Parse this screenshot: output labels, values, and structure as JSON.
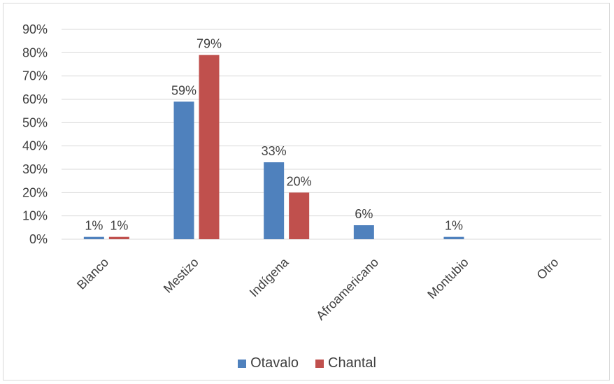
{
  "chart_data": {
    "type": "bar",
    "categories": [
      "Blanco",
      "Mestizo",
      "Indígena",
      "Afroamericano",
      "Montubio",
      "Otro"
    ],
    "series": [
      {
        "name": "Otavalo",
        "color": "#4F81BD",
        "values": [
          1,
          59,
          33,
          6,
          1,
          0
        ],
        "labels": [
          "1%",
          "59%",
          "33%",
          "6%",
          "1%",
          ""
        ]
      },
      {
        "name": "Chantal",
        "color": "#C0504D",
        "values": [
          1,
          79,
          20,
          0,
          0,
          0
        ],
        "labels": [
          "1%",
          "79%",
          "20%",
          "",
          "",
          ""
        ]
      }
    ],
    "ylim": [
      0,
      90
    ],
    "yticks": [
      "0%",
      "10%",
      "20%",
      "30%",
      "40%",
      "50%",
      "60%",
      "70%",
      "80%",
      "90%"
    ],
    "grid": true,
    "legend": "bottom"
  }
}
